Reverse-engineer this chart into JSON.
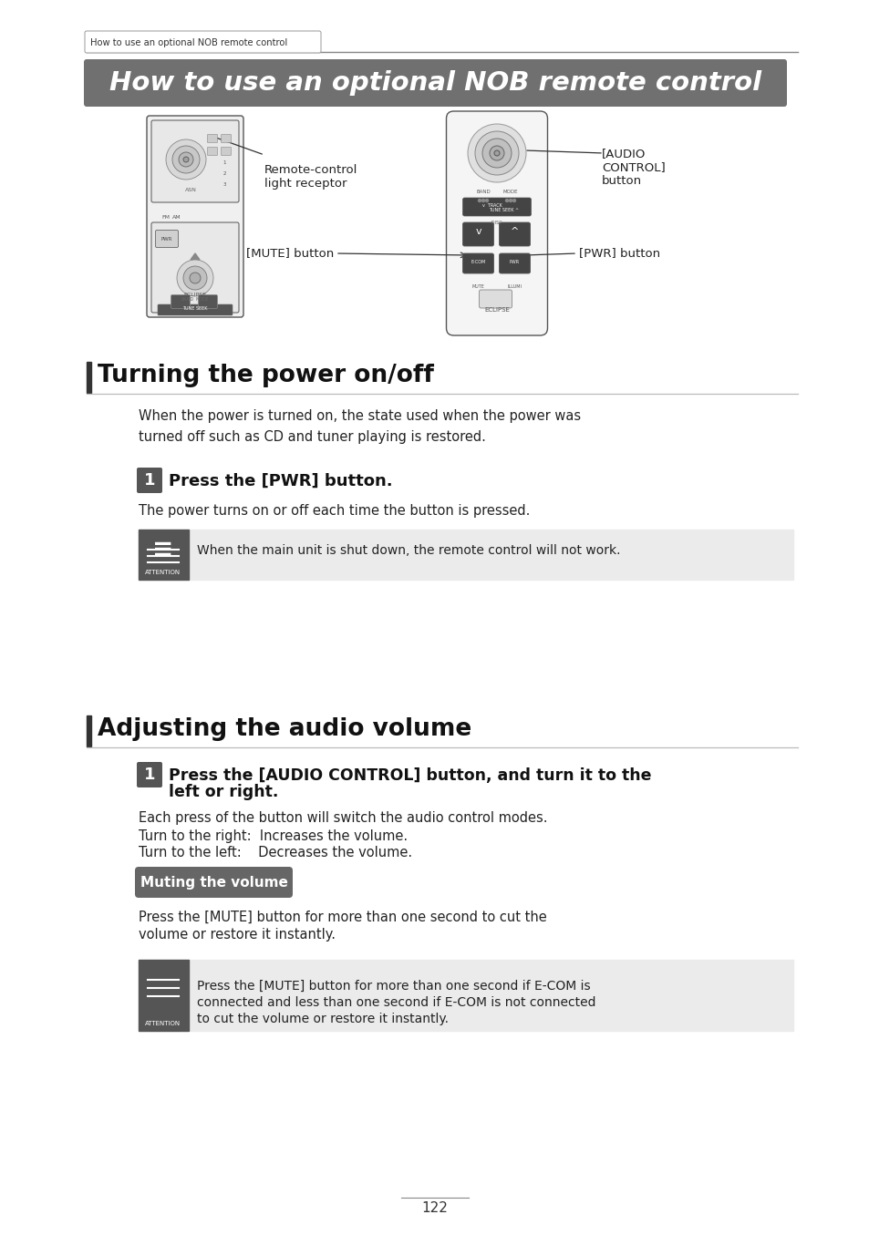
{
  "page_bg": "#ffffff",
  "header_tab_text": "How to use an optional NOB remote control",
  "header_line_color": "#888888",
  "title_banner_text": "How to use an optional NOB remote control",
  "title_banner_bg": "#707070",
  "title_banner_text_color": "#ffffff",
  "section1_title": "Turning the power on/off",
  "section2_title": "Adjusting the audio volume",
  "section_line_color": "#bbbbbb",
  "section_bar_color": "#333333",
  "body_color": "#222222",
  "step_bg": "#555555",
  "step_text_color": "#ffffff",
  "attention_bg": "#ebebeb",
  "attention_icon_bg": "#555555",
  "mute_badge_bg": "#666666",
  "mute_badge_text_color": "#ffffff",
  "page_number": "122",
  "remote_label1": "Remote-control\nlight receptor",
  "remote_label2": "[MUTE] button",
  "remote_label3": "[PWR] button",
  "remote_label4": "[AUDIO\nCONTROL]\nbutton",
  "sec1_body": "When the power is turned on, the state used when the power was\nturned off such as CD and tuner playing is restored.",
  "step1_text": "Press the [PWR] button.",
  "step1_body": "The power turns on or off each time the button is pressed.",
  "att1_text": "When the main unit is shut down, the remote control will not work.",
  "step2_text_line1": "Press the [AUDIO CONTROL] button, and turn it to the",
  "step2_text_line2": "left or right.",
  "sub1": "Each press of the button will switch the audio control modes.",
  "sub2": "Turn to the right:  Increases the volume.",
  "sub3": "Turn to the left:    Decreases the volume.",
  "mute_badge_text": "Muting the volume",
  "mute_body_line1": "Press the [MUTE] button for more than one second to cut the",
  "mute_body_line2": "volume or restore it instantly.",
  "att2_line1": "Press the [MUTE] button for more than one second if E-COM is",
  "att2_line2": "connected and less than one second if E-COM is not connected",
  "att2_line3": "to cut the volume or restore it instantly."
}
